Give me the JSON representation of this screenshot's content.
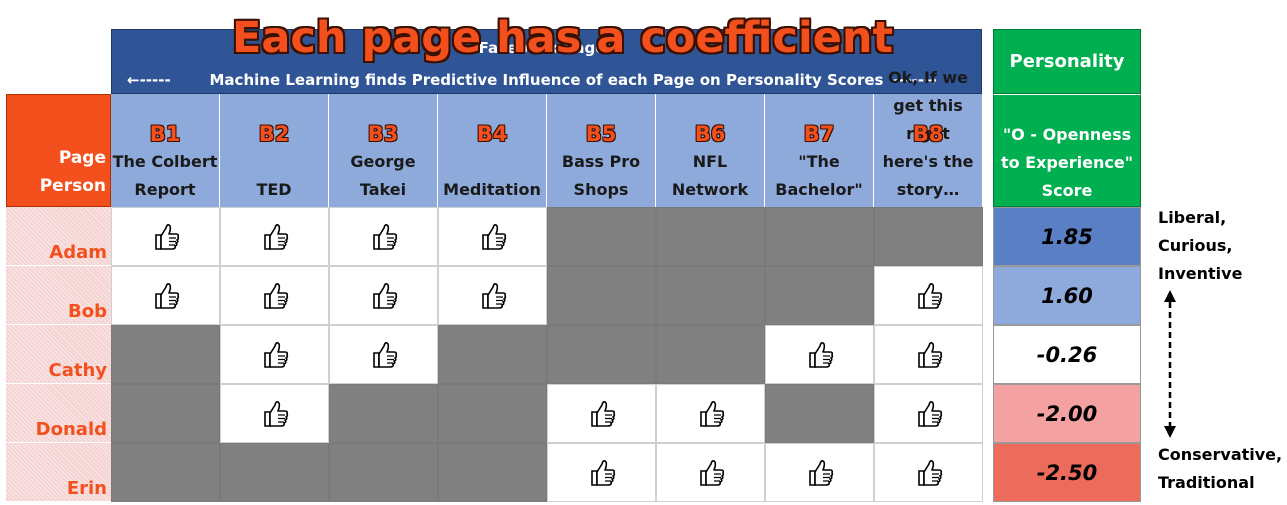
{
  "overlay_title": "Each page has a coefficient",
  "header": {
    "top_text": "Facebook Pages",
    "subtitle": "Machine Learning finds Predictive Influence of each Page on Personality Scores",
    "arrow_left": "←-----",
    "arrow_right": "-----→"
  },
  "corner": {
    "top_label": "Page",
    "bottom_label": "Person"
  },
  "pages": [
    {
      "code": "B1",
      "name": "The Colbert\nReport"
    },
    {
      "code": "B2",
      "name": "TED"
    },
    {
      "code": "B3",
      "name": "George\nTakei"
    },
    {
      "code": "B4",
      "name": "Meditation"
    },
    {
      "code": "B5",
      "name": "Bass Pro\nShops"
    },
    {
      "code": "B6",
      "name": "NFL\nNetwork"
    },
    {
      "code": "B7",
      "name": "\"The\nBachelor\""
    },
    {
      "code": "B8",
      "name": "Ok, If we\nget this right\nhere's the\nstory…"
    }
  ],
  "people": [
    {
      "name": "Adam",
      "likes": [
        1,
        1,
        1,
        1,
        0,
        0,
        0,
        0
      ],
      "score": "1.85",
      "color": "#5b7fc4"
    },
    {
      "name": "Bob",
      "likes": [
        1,
        1,
        1,
        1,
        0,
        0,
        0,
        1
      ],
      "score": "1.60",
      "color": "#8ea9db"
    },
    {
      "name": "Cathy",
      "likes": [
        0,
        1,
        1,
        0,
        0,
        0,
        1,
        1
      ],
      "score": "-0.26",
      "color": "#ffffff"
    },
    {
      "name": "Donald",
      "likes": [
        0,
        1,
        0,
        0,
        1,
        1,
        0,
        1
      ],
      "score": "-2.00",
      "color": "#f4a1a1"
    },
    {
      "name": "Erin",
      "likes": [
        0,
        0,
        0,
        0,
        1,
        1,
        1,
        1
      ],
      "score": "-2.50",
      "color": "#ec6b5a"
    }
  ],
  "personality": {
    "header": "Personality",
    "score_label": "\"O - Openness\nto Experience\"\nScore"
  },
  "side_labels": {
    "top": "Liberal,\nCurious,\nInventive",
    "bottom": "Conservative,\nTraditional"
  },
  "icons": {
    "like": "thumbs-up-icon"
  }
}
